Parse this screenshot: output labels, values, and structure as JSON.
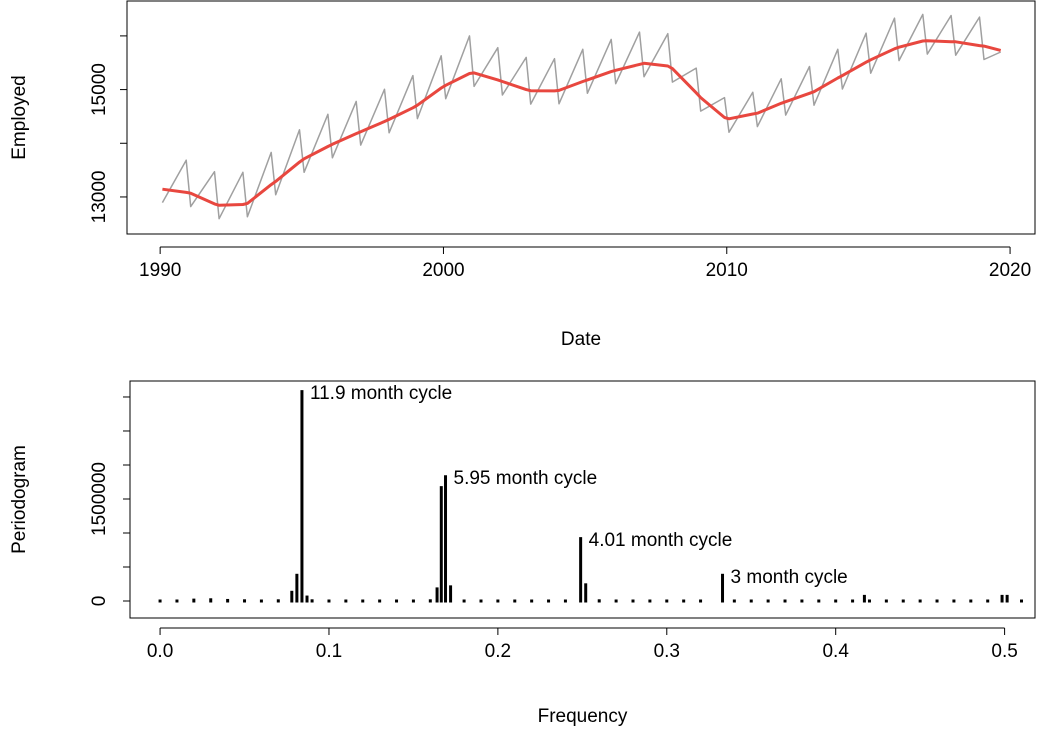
{
  "chart_data": [
    {
      "type": "line",
      "xlabel": "Date",
      "ylabel": "Employed",
      "x": [
        1990.08,
        1990.92,
        1991.08,
        1991.92,
        1992.08,
        1992.92,
        1993.08,
        1993.92,
        1994.08,
        1994.92,
        1995.08,
        1995.92,
        1996.08,
        1996.92,
        1997.08,
        1997.92,
        1998.08,
        1998.92,
        1999.08,
        1999.92,
        2000.08,
        2000.92,
        2001.08,
        2001.92,
        2002.08,
        2002.92,
        2003.08,
        2003.92,
        2004.08,
        2004.92,
        2005.08,
        2005.92,
        2006.08,
        2006.92,
        2007.08,
        2007.92,
        2008.08,
        2008.92,
        2009.08,
        2009.92,
        2010.08,
        2010.92,
        2011.08,
        2011.92,
        2012.08,
        2012.92,
        2013.08,
        2013.92,
        2014.08,
        2014.92,
        2015.08,
        2015.92,
        2016.08,
        2016.92,
        2017.08,
        2017.92,
        2018.08,
        2018.92,
        2019.08,
        2019.67
      ],
      "series": [
        {
          "color": "#a0a0a0",
          "width": 1.5,
          "values": [
            12895,
            13685,
            12820,
            13470,
            12595,
            13460,
            12630,
            13830,
            13040,
            14250,
            13460,
            14540,
            13730,
            14780,
            13965,
            15005,
            14195,
            15260,
            14460,
            15630,
            14830,
            16000,
            15060,
            15780,
            14900,
            15600,
            14730,
            15575,
            14735,
            15750,
            14930,
            15935,
            15110,
            16070,
            15240,
            16040,
            15140,
            15400,
            14600,
            14850,
            14205,
            14950,
            14310,
            15200,
            14525,
            15430,
            14710,
            15750,
            15010,
            16050,
            15305,
            16330,
            15540,
            16400,
            15660,
            16380,
            15640,
            16350,
            15560,
            15700
          ]
        },
        {
          "color": "#e8473f",
          "width": 3,
          "values": [
            13145,
            13085,
            13070,
            12870,
            12845,
            12860,
            12880,
            13230,
            13290,
            13650,
            13710,
            13940,
            13980,
            14180,
            14215,
            14405,
            14445,
            14660,
            14710,
            15030,
            15080,
            15300,
            15310,
            15180,
            15150,
            15000,
            14980,
            14975,
            14985,
            15150,
            15180,
            15335,
            15360,
            15470,
            15490,
            15440,
            15390,
            14940,
            14850,
            14480,
            14455,
            14545,
            14560,
            14745,
            14775,
            14930,
            14960,
            15215,
            15260,
            15510,
            15555,
            15760,
            15790,
            15905,
            15910,
            15890,
            15890,
            15820,
            15810,
            15730
          ]
        }
      ],
      "xlim": [
        1988.83,
        2020.88
      ],
      "xticks": [
        1990,
        2000,
        2010,
        2020
      ],
      "ylim": [
        12310,
        16650
      ],
      "yticks": [
        13000,
        15000
      ],
      "yticks_minor": [
        14000,
        16000
      ]
    },
    {
      "type": "spike",
      "xlabel": "Frequency",
      "ylabel": "Periodogram",
      "color": "#000000",
      "x": [
        0.0,
        0.01,
        0.02,
        0.03,
        0.04,
        0.05,
        0.06,
        0.07,
        0.078,
        0.081,
        0.084,
        0.087,
        0.09,
        0.1,
        0.11,
        0.12,
        0.13,
        0.14,
        0.15,
        0.16,
        0.164,
        0.1665,
        0.169,
        0.172,
        0.18,
        0.19,
        0.2,
        0.21,
        0.22,
        0.23,
        0.24,
        0.249,
        0.252,
        0.26,
        0.27,
        0.28,
        0.29,
        0.3,
        0.31,
        0.32,
        0.333,
        0.34,
        0.35,
        0.36,
        0.37,
        0.38,
        0.39,
        0.4,
        0.41,
        0.417,
        0.42,
        0.43,
        0.44,
        0.45,
        0.46,
        0.47,
        0.48,
        0.49,
        0.4985,
        0.5015,
        0.51
      ],
      "values": [
        15000,
        20000,
        35000,
        40000,
        30000,
        25000,
        20000,
        25000,
        150000,
        400000,
        3100000,
        80000,
        25000,
        20000,
        15000,
        15000,
        12000,
        12000,
        15000,
        25000,
        200000,
        1690000,
        1850000,
        230000,
        20000,
        15000,
        12000,
        12000,
        12000,
        12000,
        15000,
        940000,
        260000,
        25000,
        12000,
        10000,
        10000,
        10000,
        10000,
        10000,
        400000,
        12000,
        10000,
        10000,
        10000,
        10000,
        10000,
        12000,
        15000,
        90000,
        15000,
        10000,
        10000,
        10000,
        10000,
        10000,
        10000,
        15000,
        90000,
        90000,
        15000
      ],
      "annotations": [
        {
          "text": "11.9 month cycle",
          "x": 0.084,
          "y": 3100000
        },
        {
          "text": "5.95 month cycle",
          "x": 0.169,
          "y": 1850000
        },
        {
          "text": "4.01 month cycle",
          "x": 0.249,
          "y": 940000
        },
        {
          "text": "3 month cycle",
          "x": 0.333,
          "y": 400000
        }
      ],
      "xlim": [
        -0.0178,
        0.518
      ],
      "xticks": [
        {
          "value": 0,
          "label": "0.0"
        },
        0.1,
        0.2,
        0.3,
        0.4,
        0.5
      ],
      "ylim": [
        -250000,
        3235000
      ],
      "yticks": [
        0,
        1500000
      ],
      "yticks_minor": [
        500000,
        1000000,
        2000000,
        2500000,
        3000000
      ]
    }
  ]
}
